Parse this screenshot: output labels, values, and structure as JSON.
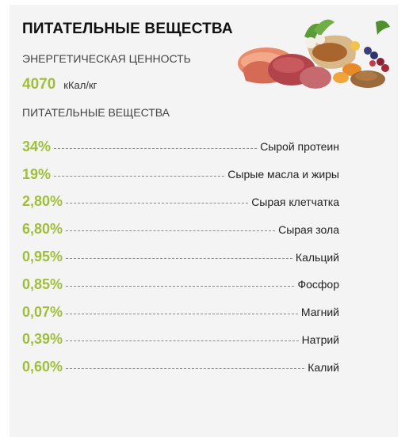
{
  "title": "ПИТАТЕЛЬНЫЕ ВЕЩЕСТВА",
  "energy": {
    "label": "ЭНЕРГЕТИЧЕСКАЯ ЦЕННОСТЬ",
    "value": "4070",
    "unit": "кКал/кг"
  },
  "nutrients_label": "ПИТАТЕЛЬНЫЕ ВЕЩЕСТВА",
  "nutrients": [
    {
      "percent": "34%",
      "name": "Сырой протеин"
    },
    {
      "percent": "19%",
      "name": "Сырые масла и жиры"
    },
    {
      "percent": "2,80%",
      "name": "Сырая клетчатка"
    },
    {
      "percent": "6,80%",
      "name": "Сырая зола"
    },
    {
      "percent": "0,95%",
      "name": "Кальций"
    },
    {
      "percent": "0,85%",
      "name": "Фосфор"
    },
    {
      "percent": "0,07%",
      "name": "Магний"
    },
    {
      "percent": "0,39%",
      "name": "Натрий"
    },
    {
      "percent": "0,60%",
      "name": "Калий"
    }
  ],
  "colors": {
    "accent": "#9fbf3b",
    "background": "#f4f4f4",
    "text": "#222222"
  },
  "image": {
    "icon": "food-ingredients-illustration"
  }
}
